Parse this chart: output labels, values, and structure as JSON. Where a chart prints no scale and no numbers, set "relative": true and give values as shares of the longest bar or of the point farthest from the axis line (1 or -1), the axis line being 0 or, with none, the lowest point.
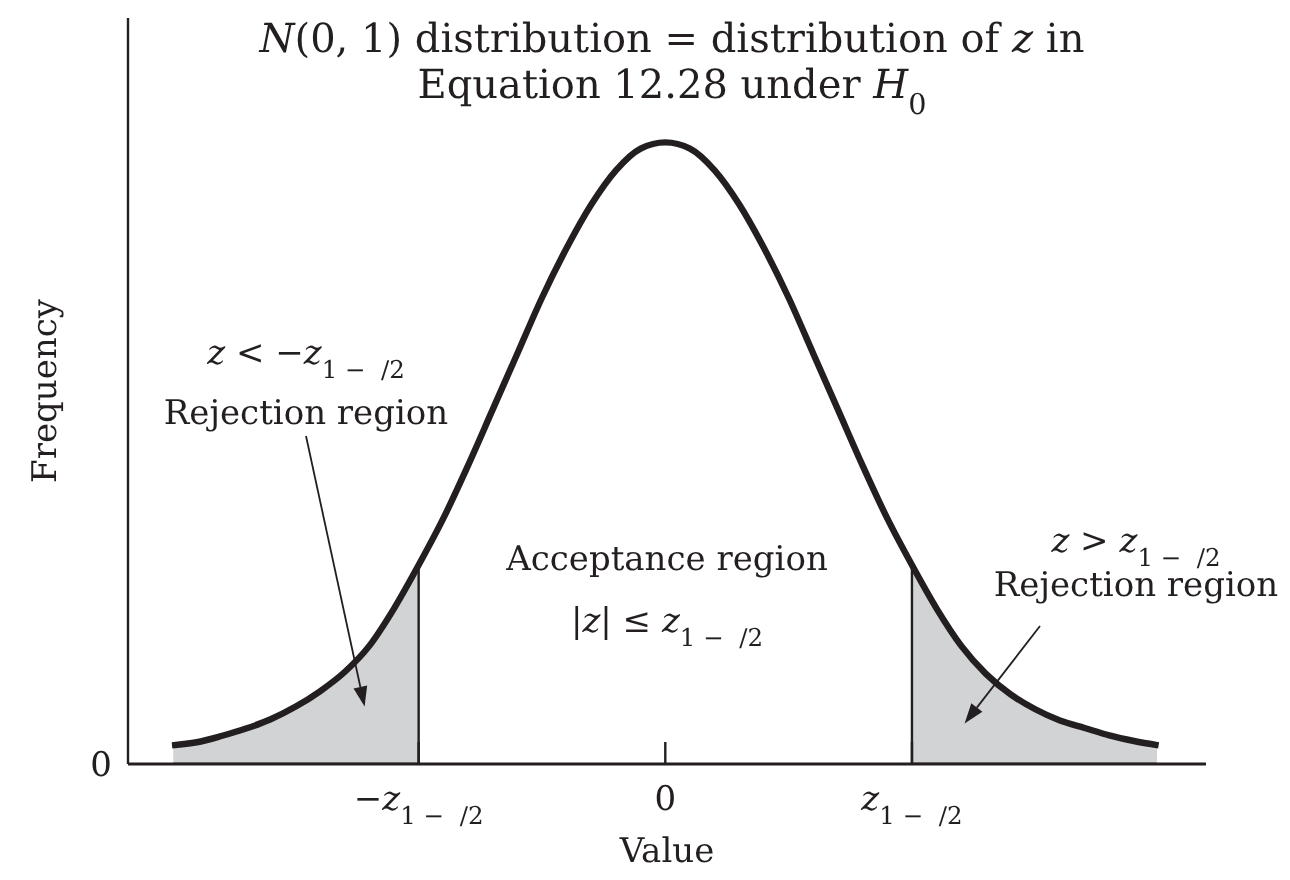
{
  "chart_data": {
    "type": "line",
    "title": "N(0, 1) distribution = distribution of z in\nEquation 12.28 under H$_{0}$",
    "xlabel": "Value",
    "ylabel": "Frequency",
    "relative": true,
    "categories": [
      null,
      null,
      null,
      null,
      null,
      null,
      null,
      null,
      null,
      null,
      "−z$_{1 −  /2}$",
      null,
      null,
      null,
      null,
      null,
      null,
      null,
      null,
      null,
      "0",
      null,
      null,
      null,
      null,
      null,
      null,
      null,
      null,
      null,
      "z$_{1 −  /2}$",
      null,
      null,
      null,
      null,
      null,
      null,
      null,
      null,
      null,
      null
    ],
    "series": [
      {
        "type": "area",
        "color": "#d1d3d4",
        "values": [
          0.03,
          0.035,
          0.045,
          0.057,
          0.072,
          0.092,
          0.117,
          0.148,
          0.19,
          0.25,
          0.32,
          null,
          null,
          null,
          null,
          null,
          null,
          null,
          null,
          null,
          null,
          null,
          null,
          null,
          null,
          null,
          null,
          null,
          null,
          null,
          null,
          null,
          null,
          null,
          null,
          null,
          null,
          null,
          null,
          null,
          null
        ]
      },
      {
        "type": "area",
        "color": "#d1d3d4",
        "values": [
          null,
          null,
          null,
          null,
          null,
          null,
          null,
          null,
          null,
          null,
          null,
          null,
          null,
          null,
          null,
          null,
          null,
          null,
          null,
          null,
          null,
          null,
          null,
          null,
          null,
          null,
          null,
          null,
          null,
          null,
          0.32,
          0.25,
          0.19,
          0.145,
          0.112,
          0.088,
          0.07,
          0.058,
          0.046,
          0.037,
          0.03
        ]
      },
      {
        "color": "#231f20",
        "values": [
          0.03,
          0.035,
          0.045,
          0.057,
          0.072,
          0.092,
          0.117,
          0.148,
          0.19,
          0.25,
          0.32,
          0.395,
          0.48,
          0.57,
          0.66,
          0.75,
          0.83,
          0.9,
          0.955,
          0.99,
          1,
          0.99,
          0.955,
          0.9,
          0.83,
          0.75,
          0.66,
          0.57,
          0.48,
          0.395,
          0.32,
          0.25,
          0.19,
          0.145,
          0.112,
          0.088,
          0.07,
          0.058,
          0.046,
          0.037,
          0.03
        ]
      }
    ],
    "annotations": [
      "z < −z$_{1 −  /2}$\nRejection region",
      "Acceptance region\n|z| ≤ z$_{1 −  /2}$",
      "z > z$_{1 −  /2}$\nRejection region",
      "0"
    ]
  }
}
